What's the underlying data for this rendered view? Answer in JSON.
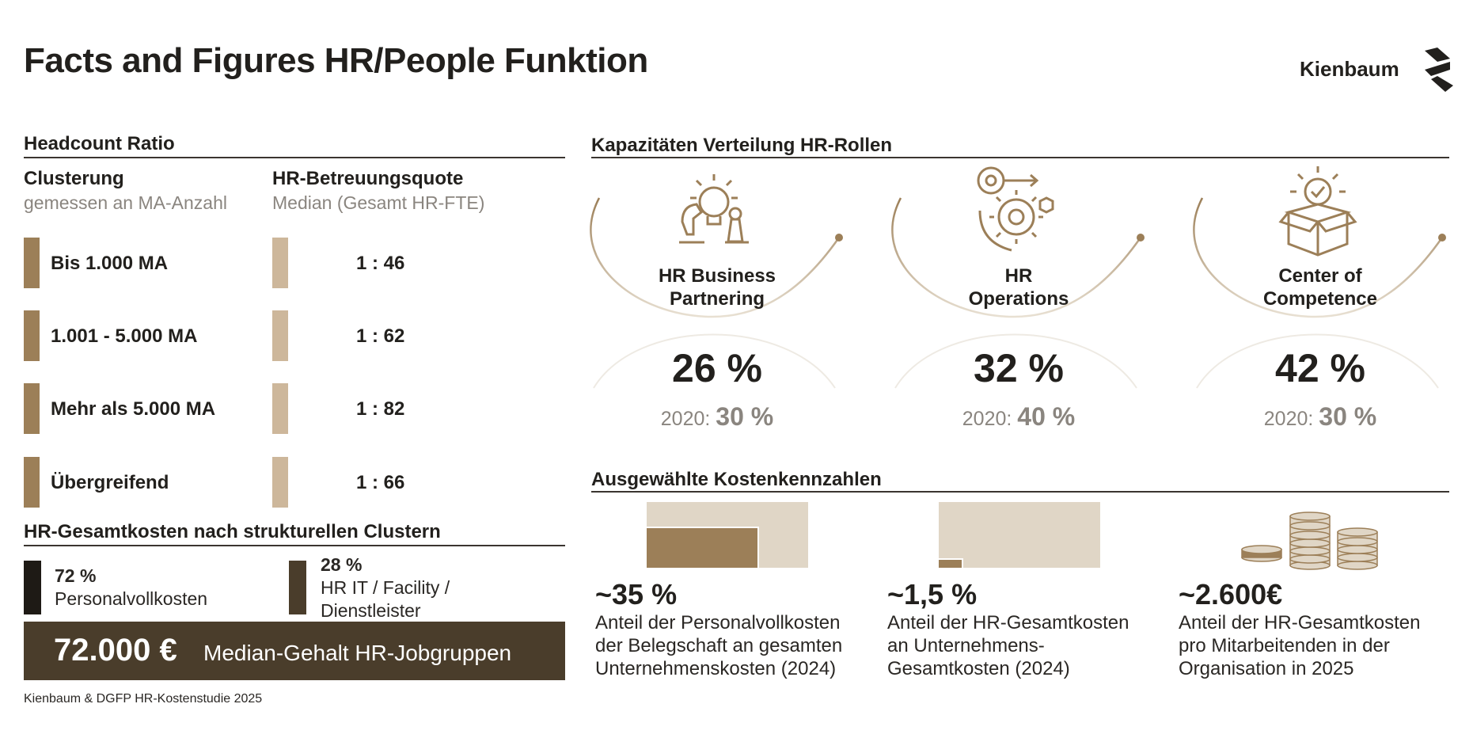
{
  "title": "Facts and Figures HR/People Funktion",
  "logo": {
    "text": "Kienbaum",
    "icon": "kienbaum-logo-icon"
  },
  "headcount": {
    "heading": "Headcount Ratio",
    "col1_title": "Clusterung",
    "col1_sub": "gemessen an MA-Anzahl",
    "col2_title": "HR-Betreuungsquote",
    "col2_sub": "Median (Gesamt HR-FTE)",
    "rows": [
      {
        "label": "Bis 1.000 MA",
        "ratio": "1 : 46"
      },
      {
        "label": "1.001 - 5.000 MA",
        "ratio": "1 : 62"
      },
      {
        "label": "Mehr als 5.000 MA",
        "ratio": "1 : 82"
      },
      {
        "label": "Übergreifend",
        "ratio": "1 : 66"
      }
    ]
  },
  "gesamtkosten": {
    "heading": "HR-Gesamtkosten nach strukturellen Clustern",
    "items": [
      {
        "pct": "72 %",
        "label1": "Personalvollkosten",
        "label2": ""
      },
      {
        "pct": "28 %",
        "label1": "HR IT / Facility /",
        "label2": "Dienstleister"
      }
    ],
    "salary_value": "72.000 €",
    "salary_label": "Median-Gehalt HR-Jobgruppen"
  },
  "source": "Kienbaum & DGFP HR-Kostenstudie 2025",
  "capacities": {
    "heading": "Kapazitäten Verteilung HR-Rollen",
    "roles": [
      {
        "line1": "HR Business",
        "line2": "Partnering",
        "pct": "26 %",
        "prev_label": "2020:",
        "prev_value": "30 %",
        "icon": "idea-chess-icon"
      },
      {
        "line1": "HR",
        "line2": "Operations",
        "pct": "32 %",
        "prev_label": "2020:",
        "prev_value": "40 %",
        "icon": "gear-process-icon"
      },
      {
        "line1": "Center of",
        "line2": "Competence",
        "pct": "42 %",
        "prev_label": "2020:",
        "prev_value": "30 %",
        "icon": "box-check-icon"
      }
    ]
  },
  "costs": {
    "heading": "Ausgewählte Kostenkennzahlen",
    "items": [
      {
        "value": "~35 %",
        "desc1": "Anteil der Personalvollkosten",
        "desc2": "der Belegschaft an gesamten",
        "desc3": "Unternehmenskosten (2024)",
        "share": 0.35
      },
      {
        "value": "~1,5 %",
        "desc1": "Anteil der HR-Gesamtkosten",
        "desc2": "an Unternehmens-",
        "desc3": "Gesamtkosten (2024)",
        "share": 0.015
      },
      {
        "value": "~2.600€",
        "desc1": "Anteil der HR-Gesamtkosten",
        "desc2": "pro Mitarbeitenden in der",
        "desc3": "Organisation in 2025",
        "icon": "coins-icon"
      }
    ]
  },
  "colors": {
    "gold": "#9c7f58",
    "light_gold": "#cdb79b",
    "beige": "#e0d6c6",
    "dark": "#4a3d2b",
    "black": "#1e1a15"
  }
}
